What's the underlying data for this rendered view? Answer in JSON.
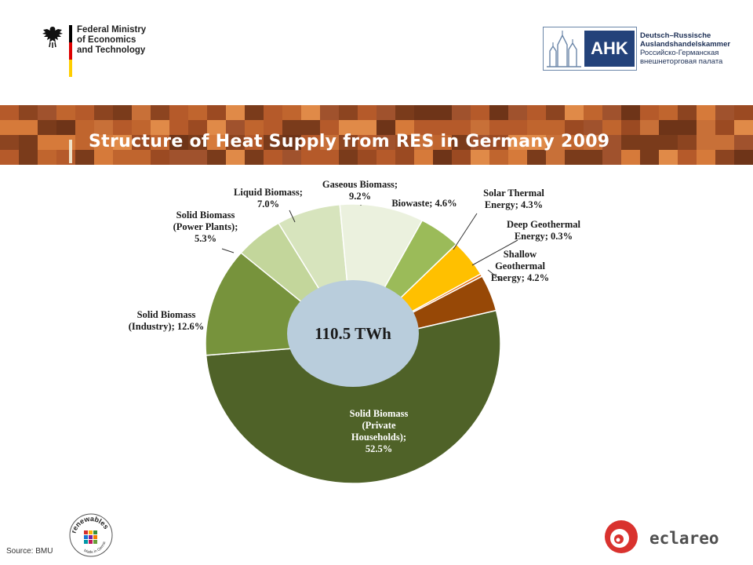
{
  "header": {
    "ministry_line1": "Federal Ministry",
    "ministry_line2": "of Economics",
    "ministry_line3": "and Technology",
    "ahk_mark": "AHK",
    "ahk_line1": "Deutsch–Russische",
    "ahk_line2": "Auslandshandelskammer",
    "ahk_line3": "Российско-Германская",
    "ahk_line4": "внешнеторговая палата",
    "flag_colors": [
      "#000000",
      "#dd0000",
      "#ffce00"
    ]
  },
  "banner": {
    "title": "Structure of Heat Supply from RES in Germany 2009"
  },
  "chart_data": {
    "type": "pie",
    "donut": true,
    "center_label": "110.5 TWh",
    "slices": [
      {
        "label_lines": [
          "Biowaste;  4.6%"
        ],
        "value": 4.6,
        "color": "#9bbb59"
      },
      {
        "label_lines": [
          "Solar Thermal",
          "Energy;  4.3%"
        ],
        "value": 4.3,
        "color": "#ffc000"
      },
      {
        "label_lines": [
          "Deep Geothermal",
          "Energy;  0.3%"
        ],
        "value": 0.3,
        "color": "#e36c0a"
      },
      {
        "label_lines": [
          "Shallow",
          "Geothermal",
          "Energy;  4.2%"
        ],
        "value": 4.2,
        "color": "#974806"
      },
      {
        "label_lines": [
          "Solid Biomass",
          "(Private",
          "Households);",
          "52.5%"
        ],
        "value": 52.5,
        "color": "#4f6228"
      },
      {
        "label_lines": [
          "Solid Biomass",
          "(Industry);  12.6%"
        ],
        "value": 12.6,
        "color": "#77933c"
      },
      {
        "label_lines": [
          "Solid Biomass",
          "(Power Plants);",
          "5.3%"
        ],
        "value": 5.3,
        "color": "#c3d69b"
      },
      {
        "label_lines": [
          "Liquid Biomass;",
          "7.0%"
        ],
        "value": 7.0,
        "color": "#d7e4bd"
      },
      {
        "label_lines": [
          "Gaseous Biomass;",
          "9.2%"
        ],
        "value": 9.2,
        "color": "#ebf1de"
      }
    ],
    "hole_color": "#b9cddc"
  },
  "footer": {
    "source": "Source: BMU",
    "renewables_text": "renewables",
    "renewables_sub": "Made in Germany",
    "eclareon": "eclareon"
  }
}
